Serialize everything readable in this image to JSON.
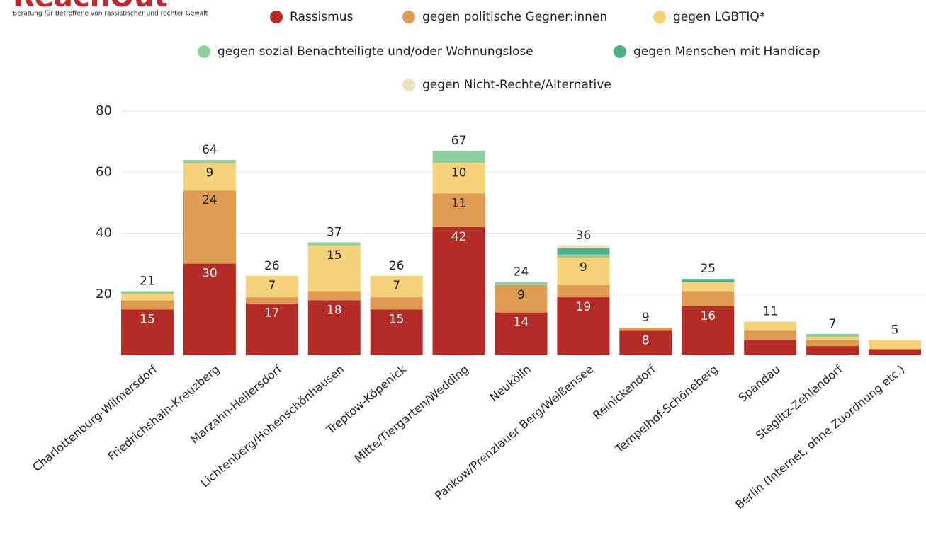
{
  "logo": "ReachOut",
  "tagline": "Beratung für Betroffene von rassistischer und rechter Gewalt",
  "chart_data": {
    "type": "stacked_bar",
    "categories": [
      "Charlottenburg-Wilmersdorf",
      "Friedrichshain-Kreuzberg",
      "Marzahn-Hellersdorf",
      "Lichtenberg/Hohenschönhausen",
      "Treptow-Köpenick",
      "Mitte/Tiergarten/Wedding",
      "Neukölln",
      "Pankow/Prenzlauer Berg/Weißensee",
      "Reinickendorf",
      "Tempelhof-Schöneberg",
      "Spandau",
      "Steglitz-Zehlendorf",
      "Berlin (Internet, ohne Zuordnung etc.)"
    ],
    "series": [
      {
        "name": "Rassismus",
        "color": "#b52b26",
        "values": [
          15,
          30,
          17,
          18,
          15,
          42,
          14,
          19,
          8,
          16,
          5,
          3,
          2
        ]
      },
      {
        "name": "gegen politische Gegner:innen",
        "color": "#e09b52",
        "values": [
          3,
          24,
          2,
          3,
          4,
          11,
          9,
          4,
          1,
          5,
          3,
          2,
          0
        ]
      },
      {
        "name": "gegen LGBTIQ*",
        "color": "#f6d27a",
        "values": [
          2,
          9,
          7,
          15,
          7,
          10,
          0,
          9,
          0,
          3,
          3,
          1,
          3
        ]
      },
      {
        "name": "gegen sozial Benachteiligte und/oder Wohnungslose",
        "color": "#8fcf9d",
        "values": [
          1,
          1,
          0,
          1,
          0,
          4,
          1,
          1,
          0,
          0,
          0,
          1,
          0
        ]
      },
      {
        "name": "gegen Menschen mit Handicap",
        "color": "#4caf8a",
        "values": [
          0,
          0,
          0,
          0,
          0,
          0,
          0,
          2,
          0,
          1,
          0,
          0,
          0
        ]
      },
      {
        "name": "gegen Nicht-Rechte/Alternative",
        "color": "#e6e4c2",
        "values": [
          0,
          0,
          0,
          0,
          0,
          0,
          0,
          1,
          0,
          0,
          0,
          0,
          0
        ]
      }
    ],
    "totals": [
      21,
      64,
      26,
      37,
      26,
      67,
      24,
      36,
      9,
      25,
      11,
      7,
      5
    ],
    "ylim": [
      0,
      80
    ],
    "yticks": [
      20,
      40,
      60,
      80
    ],
    "grid": true
  }
}
